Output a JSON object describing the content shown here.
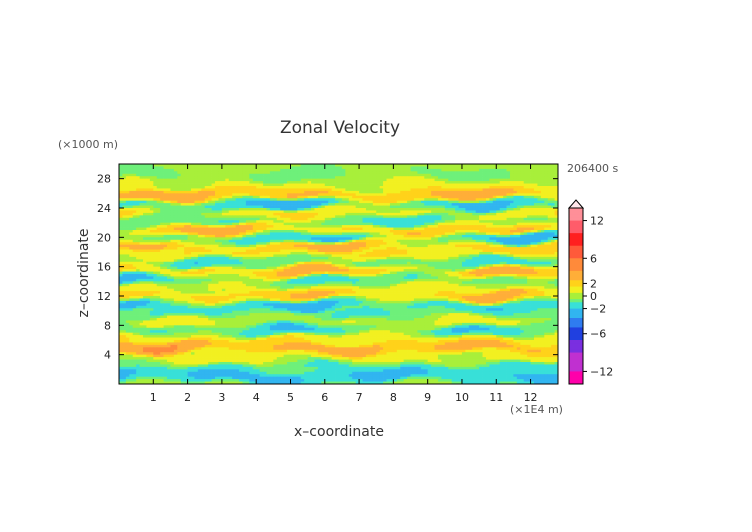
{
  "chart_data": {
    "type": "heatmap",
    "title": "Zonal Velocity",
    "xlabel": "x–coordinate",
    "ylabel": "z–coordinate",
    "x_unit": "(×1E4 m)",
    "y_unit": "(×1000 m)",
    "time_label": "206400 s",
    "xlim": [
      0,
      12.8
    ],
    "ylim": [
      0,
      30
    ],
    "x_ticks": [
      "1",
      "2",
      "3",
      "4",
      "5",
      "6",
      "7",
      "8",
      "9",
      "10",
      "11",
      "12"
    ],
    "y_ticks": [
      "4",
      "8",
      "12",
      "16",
      "20",
      "24",
      "28"
    ],
    "colorbar": {
      "range": [
        -14,
        14
      ],
      "ticks": [
        "12",
        "6",
        "2",
        "0",
        "−2",
        "−6",
        "−12"
      ],
      "tick_values": [
        12,
        6,
        2,
        0,
        -2,
        -6,
        -12
      ],
      "extend": "max"
    },
    "bands": [
      {
        "z": 1.2,
        "u": -3.0,
        "amp": 0.8
      },
      {
        "z": 2.2,
        "u": -1.5,
        "amp": 0.6
      },
      {
        "z": 3.5,
        "u": 1.0,
        "amp": 0.6
      },
      {
        "z": 5.0,
        "u": 3.6,
        "amp": 1.2
      },
      {
        "z": 6.2,
        "u": 1.5,
        "amp": 0.7
      },
      {
        "z": 7.4,
        "u": -2.0,
        "amp": 1.0
      },
      {
        "z": 8.6,
        "u": 1.0,
        "amp": 0.8
      },
      {
        "z": 9.6,
        "u": -1.2,
        "amp": 0.8
      },
      {
        "z": 10.8,
        "u": -2.5,
        "amp": 1.0
      },
      {
        "z": 12.0,
        "u": 2.8,
        "amp": 1.0
      },
      {
        "z": 13.2,
        "u": 1.0,
        "amp": 0.6
      },
      {
        "z": 14.2,
        "u": -2.0,
        "amp": 0.9
      },
      {
        "z": 15.4,
        "u": 3.2,
        "amp": 1.0
      },
      {
        "z": 16.6,
        "u": -1.8,
        "amp": 0.8
      },
      {
        "z": 17.8,
        "u": 1.5,
        "amp": 0.7
      },
      {
        "z": 18.8,
        "u": 3.0,
        "amp": 1.0
      },
      {
        "z": 19.8,
        "u": -2.6,
        "amp": 1.0
      },
      {
        "z": 21.0,
        "u": 3.0,
        "amp": 1.0
      },
      {
        "z": 22.2,
        "u": -1.5,
        "amp": 0.8
      },
      {
        "z": 23.4,
        "u": 2.0,
        "amp": 0.8
      },
      {
        "z": 24.4,
        "u": -2.8,
        "amp": 1.0
      },
      {
        "z": 25.8,
        "u": 3.5,
        "amp": 1.0
      },
      {
        "z": 27.0,
        "u": 0.8,
        "amp": 0.6
      },
      {
        "z": 28.6,
        "u": -0.5,
        "amp": 0.5
      }
    ]
  }
}
